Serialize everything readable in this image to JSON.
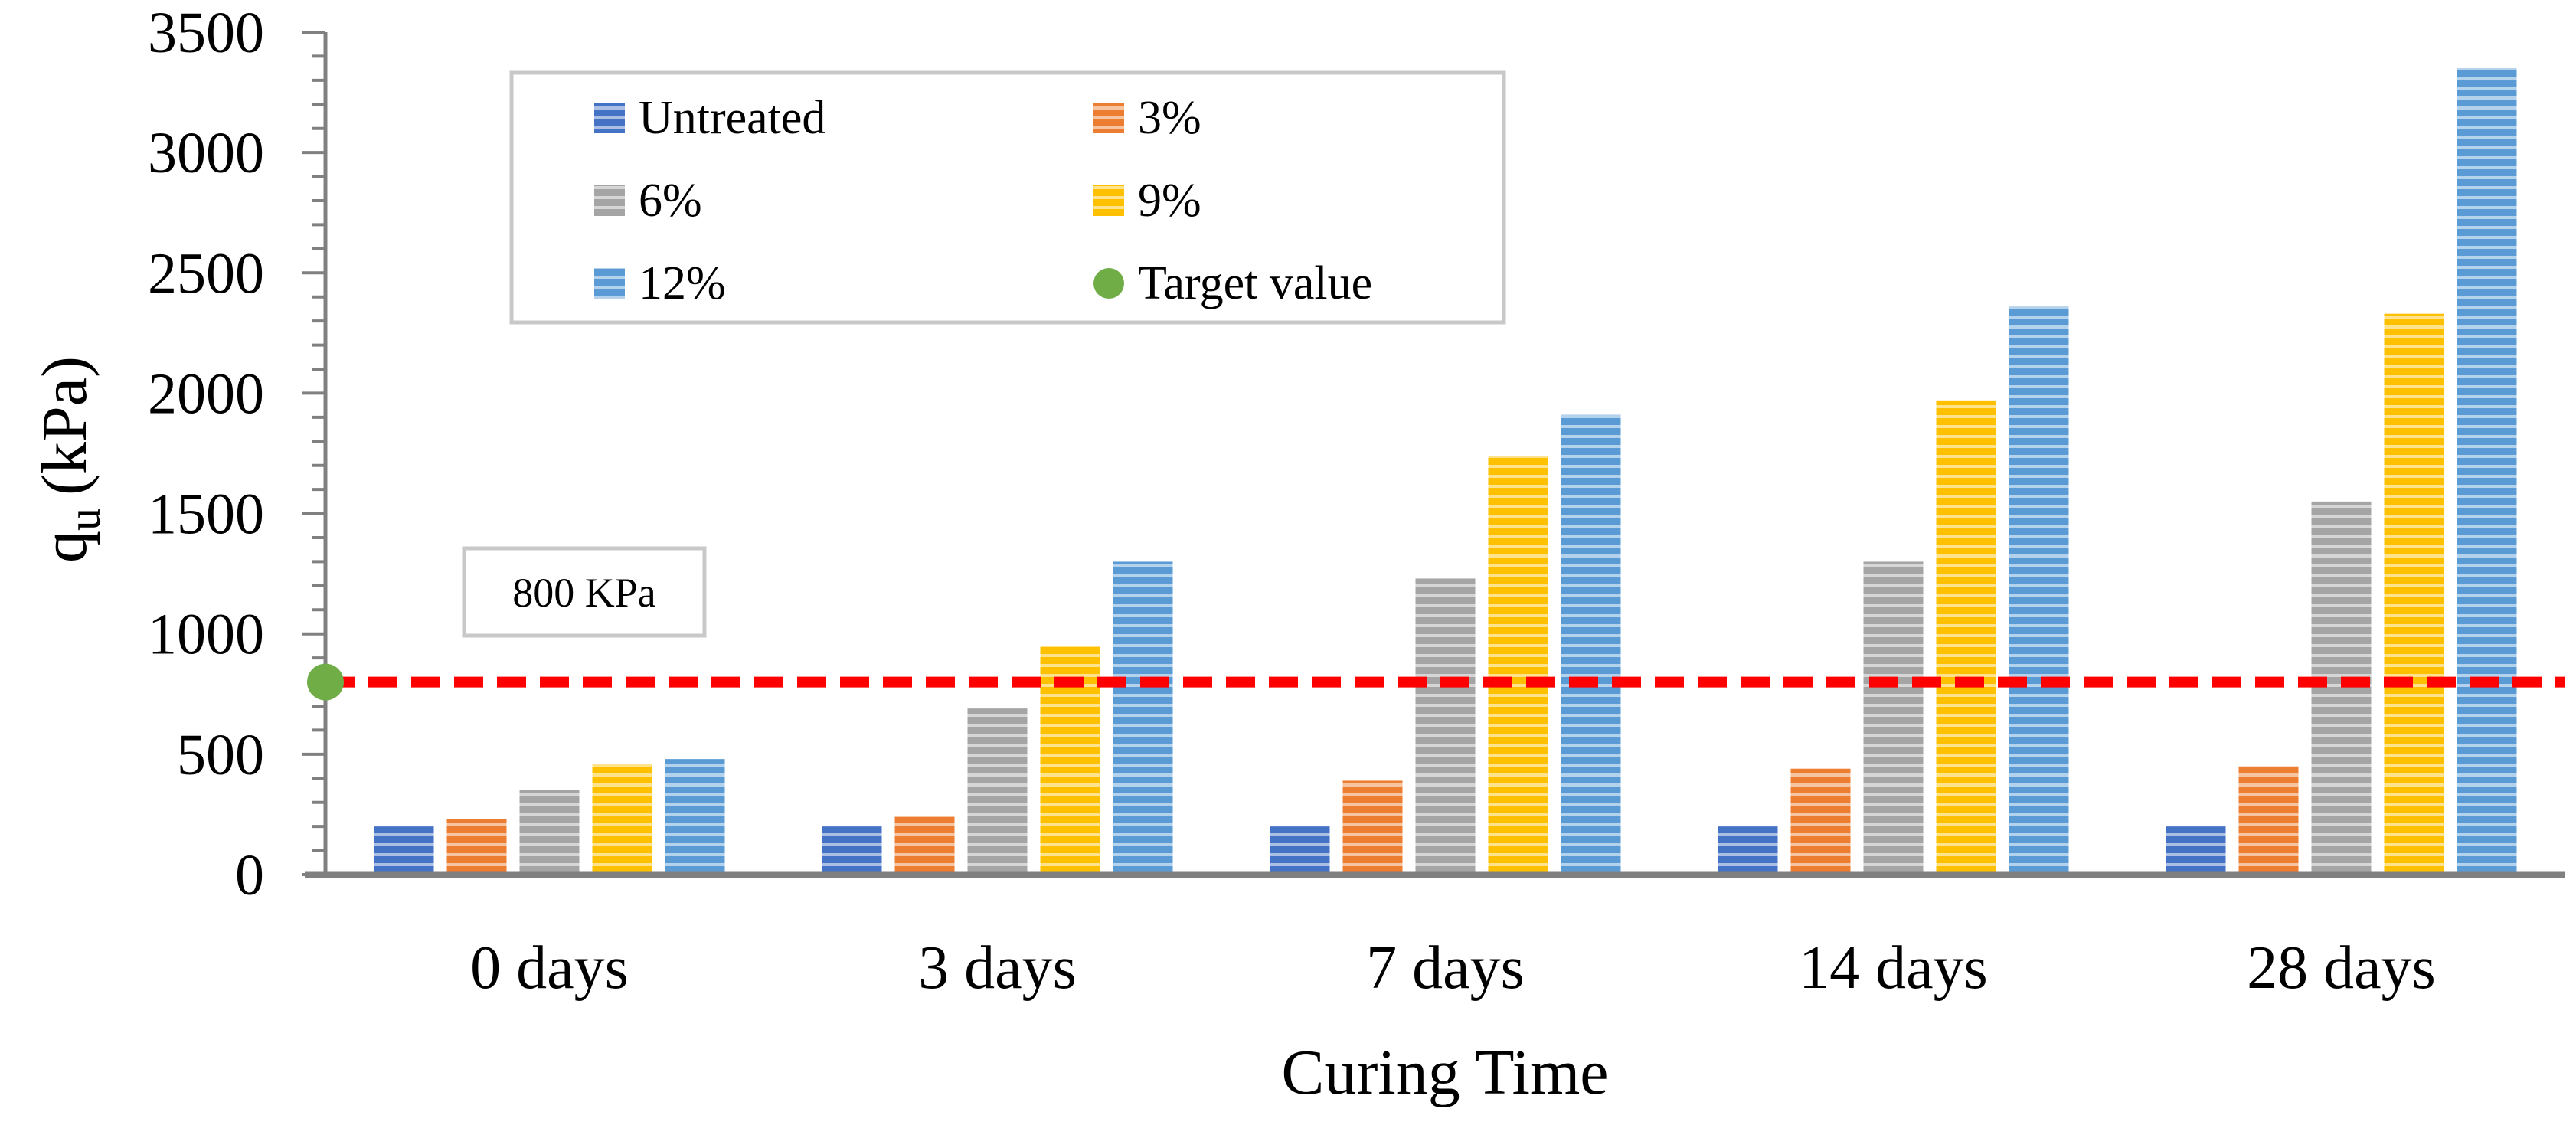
{
  "chart_data": {
    "type": "bar",
    "title": "",
    "xlabel": "Curing Time",
    "ylabel": "q",
    "ylabel_subscript": "u",
    "ylabel_unit": "(kPa)",
    "categories": [
      "0 days",
      "3 days",
      "7 days",
      "14 days",
      "28 days"
    ],
    "ylim": [
      0,
      3500
    ],
    "yticks": [
      0,
      500,
      1000,
      1500,
      2000,
      2500,
      3000,
      3500
    ],
    "grid": false,
    "legend_position": "top-left",
    "series": [
      {
        "name": "Untreated",
        "color": "#4472C4",
        "values": [
          200,
          200,
          200,
          200,
          200
        ]
      },
      {
        "name": "3%",
        "color": "#ED7D31",
        "values": [
          230,
          240,
          390,
          440,
          450
        ]
      },
      {
        "name": "6%",
        "color": "#A5A5A5",
        "values": [
          350,
          690,
          1230,
          1300,
          1550
        ]
      },
      {
        "name": "9%",
        "color": "#FFC000",
        "values": [
          460,
          950,
          1740,
          1970,
          2330
        ]
      },
      {
        "name": "12%",
        "color": "#5B9BD5",
        "values": [
          480,
          1300,
          1910,
          2360,
          3350
        ]
      }
    ],
    "target": {
      "name": "Target value",
      "value": 800,
      "color": "#70AD47",
      "line_color": "#FF0000"
    },
    "annotation": "800 KPa"
  }
}
